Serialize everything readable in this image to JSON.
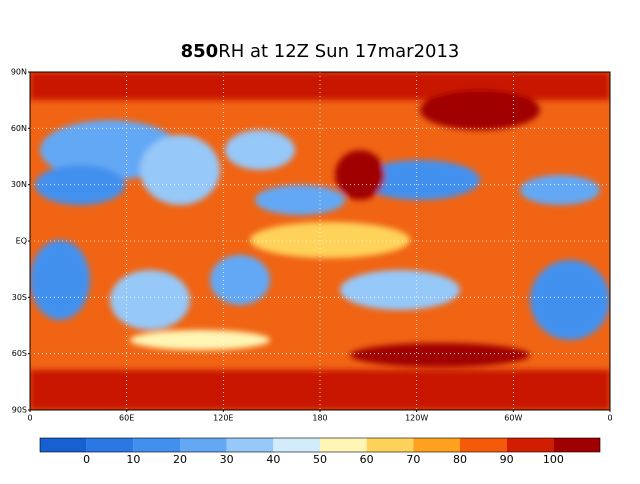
{
  "header": {
    "title_bold": "850",
    "title_rest": "RH at 12Z Sun 17mar2013"
  },
  "map": {
    "lat_labels": [
      "90N",
      "60N",
      "30N",
      "EQ",
      "30S",
      "60S",
      "90S"
    ],
    "lon_labels": [
      "0",
      "60E",
      "120E",
      "180",
      "120W",
      "60W",
      "0"
    ]
  },
  "colorbar": {
    "colors": [
      "#1660d2",
      "#2a78e4",
      "#4290ee",
      "#64a8f4",
      "#96c8f8",
      "#d2ecfc",
      "#fff5b4",
      "#ffd25a",
      "#ffa01e",
      "#f55a0a",
      "#d21e00",
      "#a00000"
    ],
    "ticks": [
      0,
      10,
      20,
      30,
      40,
      50,
      60,
      70,
      80,
      90,
      100
    ]
  }
}
